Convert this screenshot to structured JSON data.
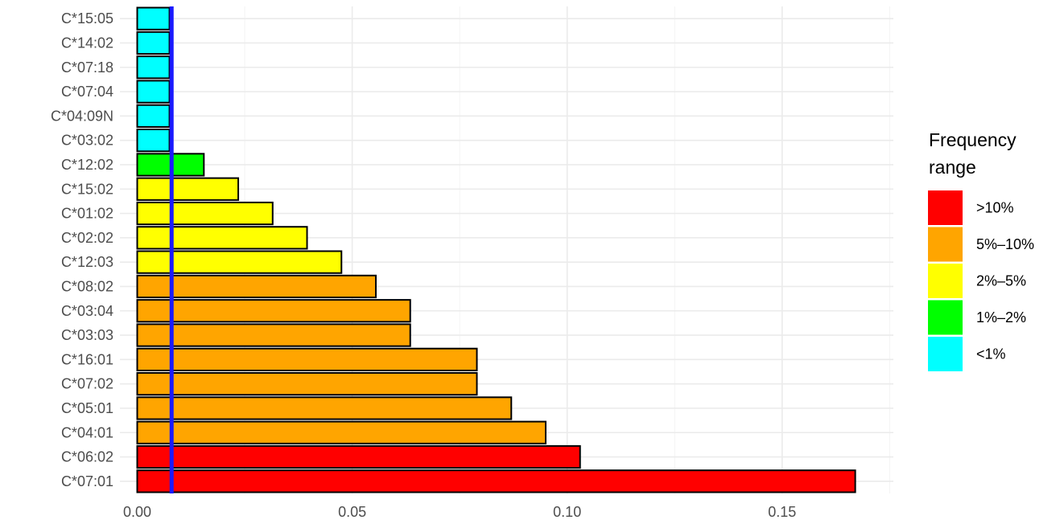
{
  "chart_data": {
    "type": "bar",
    "orientation": "horizontal",
    "categories": [
      "C*07:01",
      "C*06:02",
      "C*04:01",
      "C*05:01",
      "C*07:02",
      "C*16:01",
      "C*03:03",
      "C*03:04",
      "C*08:02",
      "C*12:03",
      "C*02:02",
      "C*01:02",
      "C*15:02",
      "C*12:02",
      "C*03:02",
      "C*04:09N",
      "C*07:04",
      "C*07:18",
      "C*14:02",
      "C*15:05"
    ],
    "values": [
      0.167,
      0.103,
      0.095,
      0.087,
      0.079,
      0.079,
      0.0635,
      0.0635,
      0.0555,
      0.0475,
      0.0395,
      0.0315,
      0.0235,
      0.0155,
      0.0075,
      0.0075,
      0.0075,
      0.0075,
      0.0075,
      0.0075
    ],
    "ranges": [
      ">10%",
      ">10%",
      "5%–10%",
      "5%–10%",
      "5%–10%",
      "5%–10%",
      "5%–10%",
      "5%–10%",
      "5%–10%",
      "2%–5%",
      "2%–5%",
      "2%–5%",
      "2%–5%",
      "1%–2%",
      "<1%",
      "<1%",
      "<1%",
      "<1%",
      "<1%",
      "<1%"
    ],
    "xlim": [
      0,
      0.175
    ],
    "xticks": [
      0.0,
      0.05,
      0.1,
      0.15
    ],
    "xtick_labels": [
      "0.00",
      "0.05",
      "0.10",
      "0.15"
    ],
    "reference_line": {
      "x": 0.008,
      "color": "#1a1aff"
    },
    "grid": true,
    "legend": {
      "title_lines": [
        "Frequency",
        "range"
      ],
      "placement": "right",
      "items": [
        {
          "label": ">10%",
          "color": "#ff0000"
        },
        {
          "label": "5%–10%",
          "color": "#ffa500"
        },
        {
          "label": "2%–5%",
          "color": "#ffff00"
        },
        {
          "label": "1%–2%",
          "color": "#00ff00"
        },
        {
          "label": "<1%",
          "color": "#00ffff"
        }
      ]
    }
  }
}
